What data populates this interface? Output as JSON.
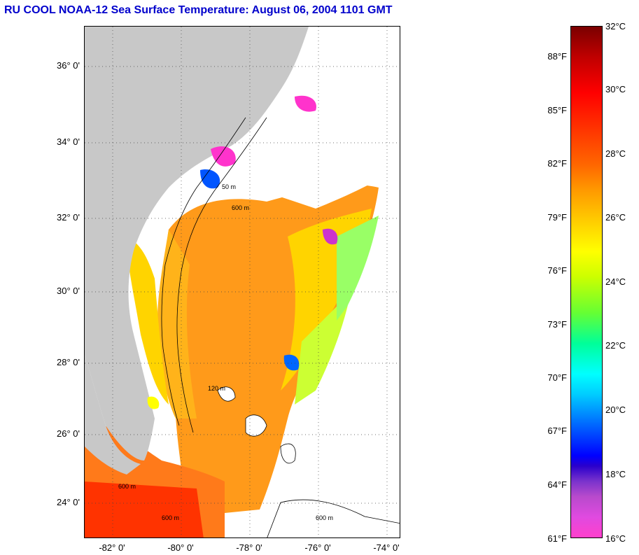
{
  "title": "RU COOL  NOAA-12  Sea Surface Temperature:  August 06, 2004 1101 GMT",
  "map": {
    "lat_labels": [
      "36° 0'",
      "34° 0'",
      "32° 0'",
      "30° 0'",
      "28° 0'",
      "26° 0'",
      "24° 0'"
    ],
    "lon_labels": [
      "-82° 0'",
      "-80° 0'",
      "-78° 0'",
      "-76° 0'",
      "-74° 0'"
    ],
    "contour_labels": [
      "50 m",
      "600 m",
      "120 m",
      "600 m",
      "600 m",
      "600 m"
    ],
    "colors": {
      "land": "#c8c8c8",
      "ocean_warm": "#ff9a1a",
      "ocean_mid": "#ffcc00",
      "cloud": "#ffffff"
    }
  },
  "colorbar": {
    "fahrenheit": [
      "88°F",
      "85°F",
      "82°F",
      "79°F",
      "76°F",
      "73°F",
      "70°F",
      "67°F",
      "64°F",
      "61°F"
    ],
    "celsius": [
      "32°C",
      "30°C",
      "28°C",
      "26°C",
      "24°C",
      "22°C",
      "20°C",
      "18°C",
      "16°C"
    ]
  }
}
